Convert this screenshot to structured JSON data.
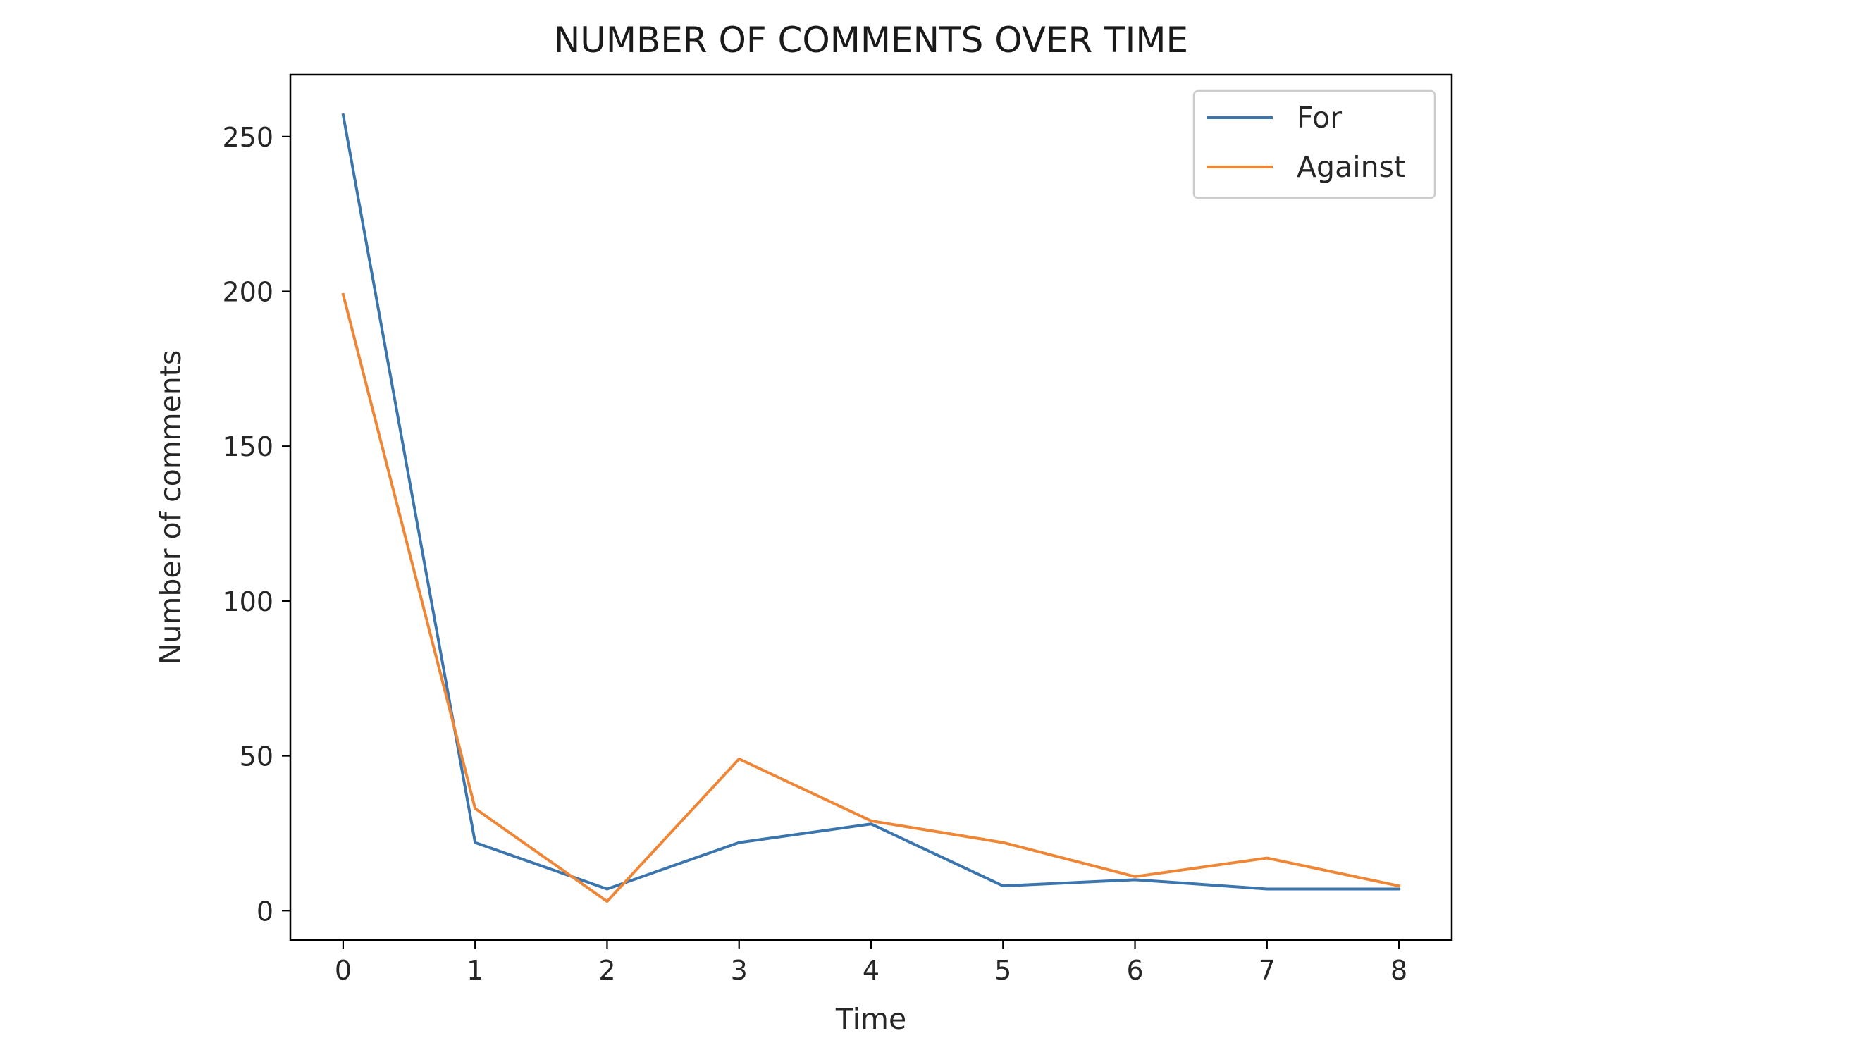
{
  "chart_data": {
    "type": "line",
    "title": "NUMBER OF COMMENTS OVER TIME",
    "xlabel": "Time",
    "ylabel": "Number of comments",
    "x": [
      0,
      1,
      2,
      3,
      4,
      5,
      6,
      7,
      8
    ],
    "xticks": [
      0,
      1,
      2,
      3,
      4,
      5,
      6,
      7,
      8
    ],
    "yticks": [
      0,
      50,
      100,
      150,
      200,
      250
    ],
    "xlim": [
      -0.4,
      8.4
    ],
    "ylim": [
      -9.5,
      270
    ],
    "grid": false,
    "legend_position": "top-right",
    "series": [
      {
        "name": "For",
        "color": "#3a75ae",
        "values": [
          257,
          22,
          7,
          22,
          28,
          8,
          10,
          7,
          7
        ]
      },
      {
        "name": "Against",
        "color": "#ef8636",
        "values": [
          199,
          33,
          3,
          49,
          29,
          22,
          11,
          17,
          8
        ]
      }
    ]
  }
}
